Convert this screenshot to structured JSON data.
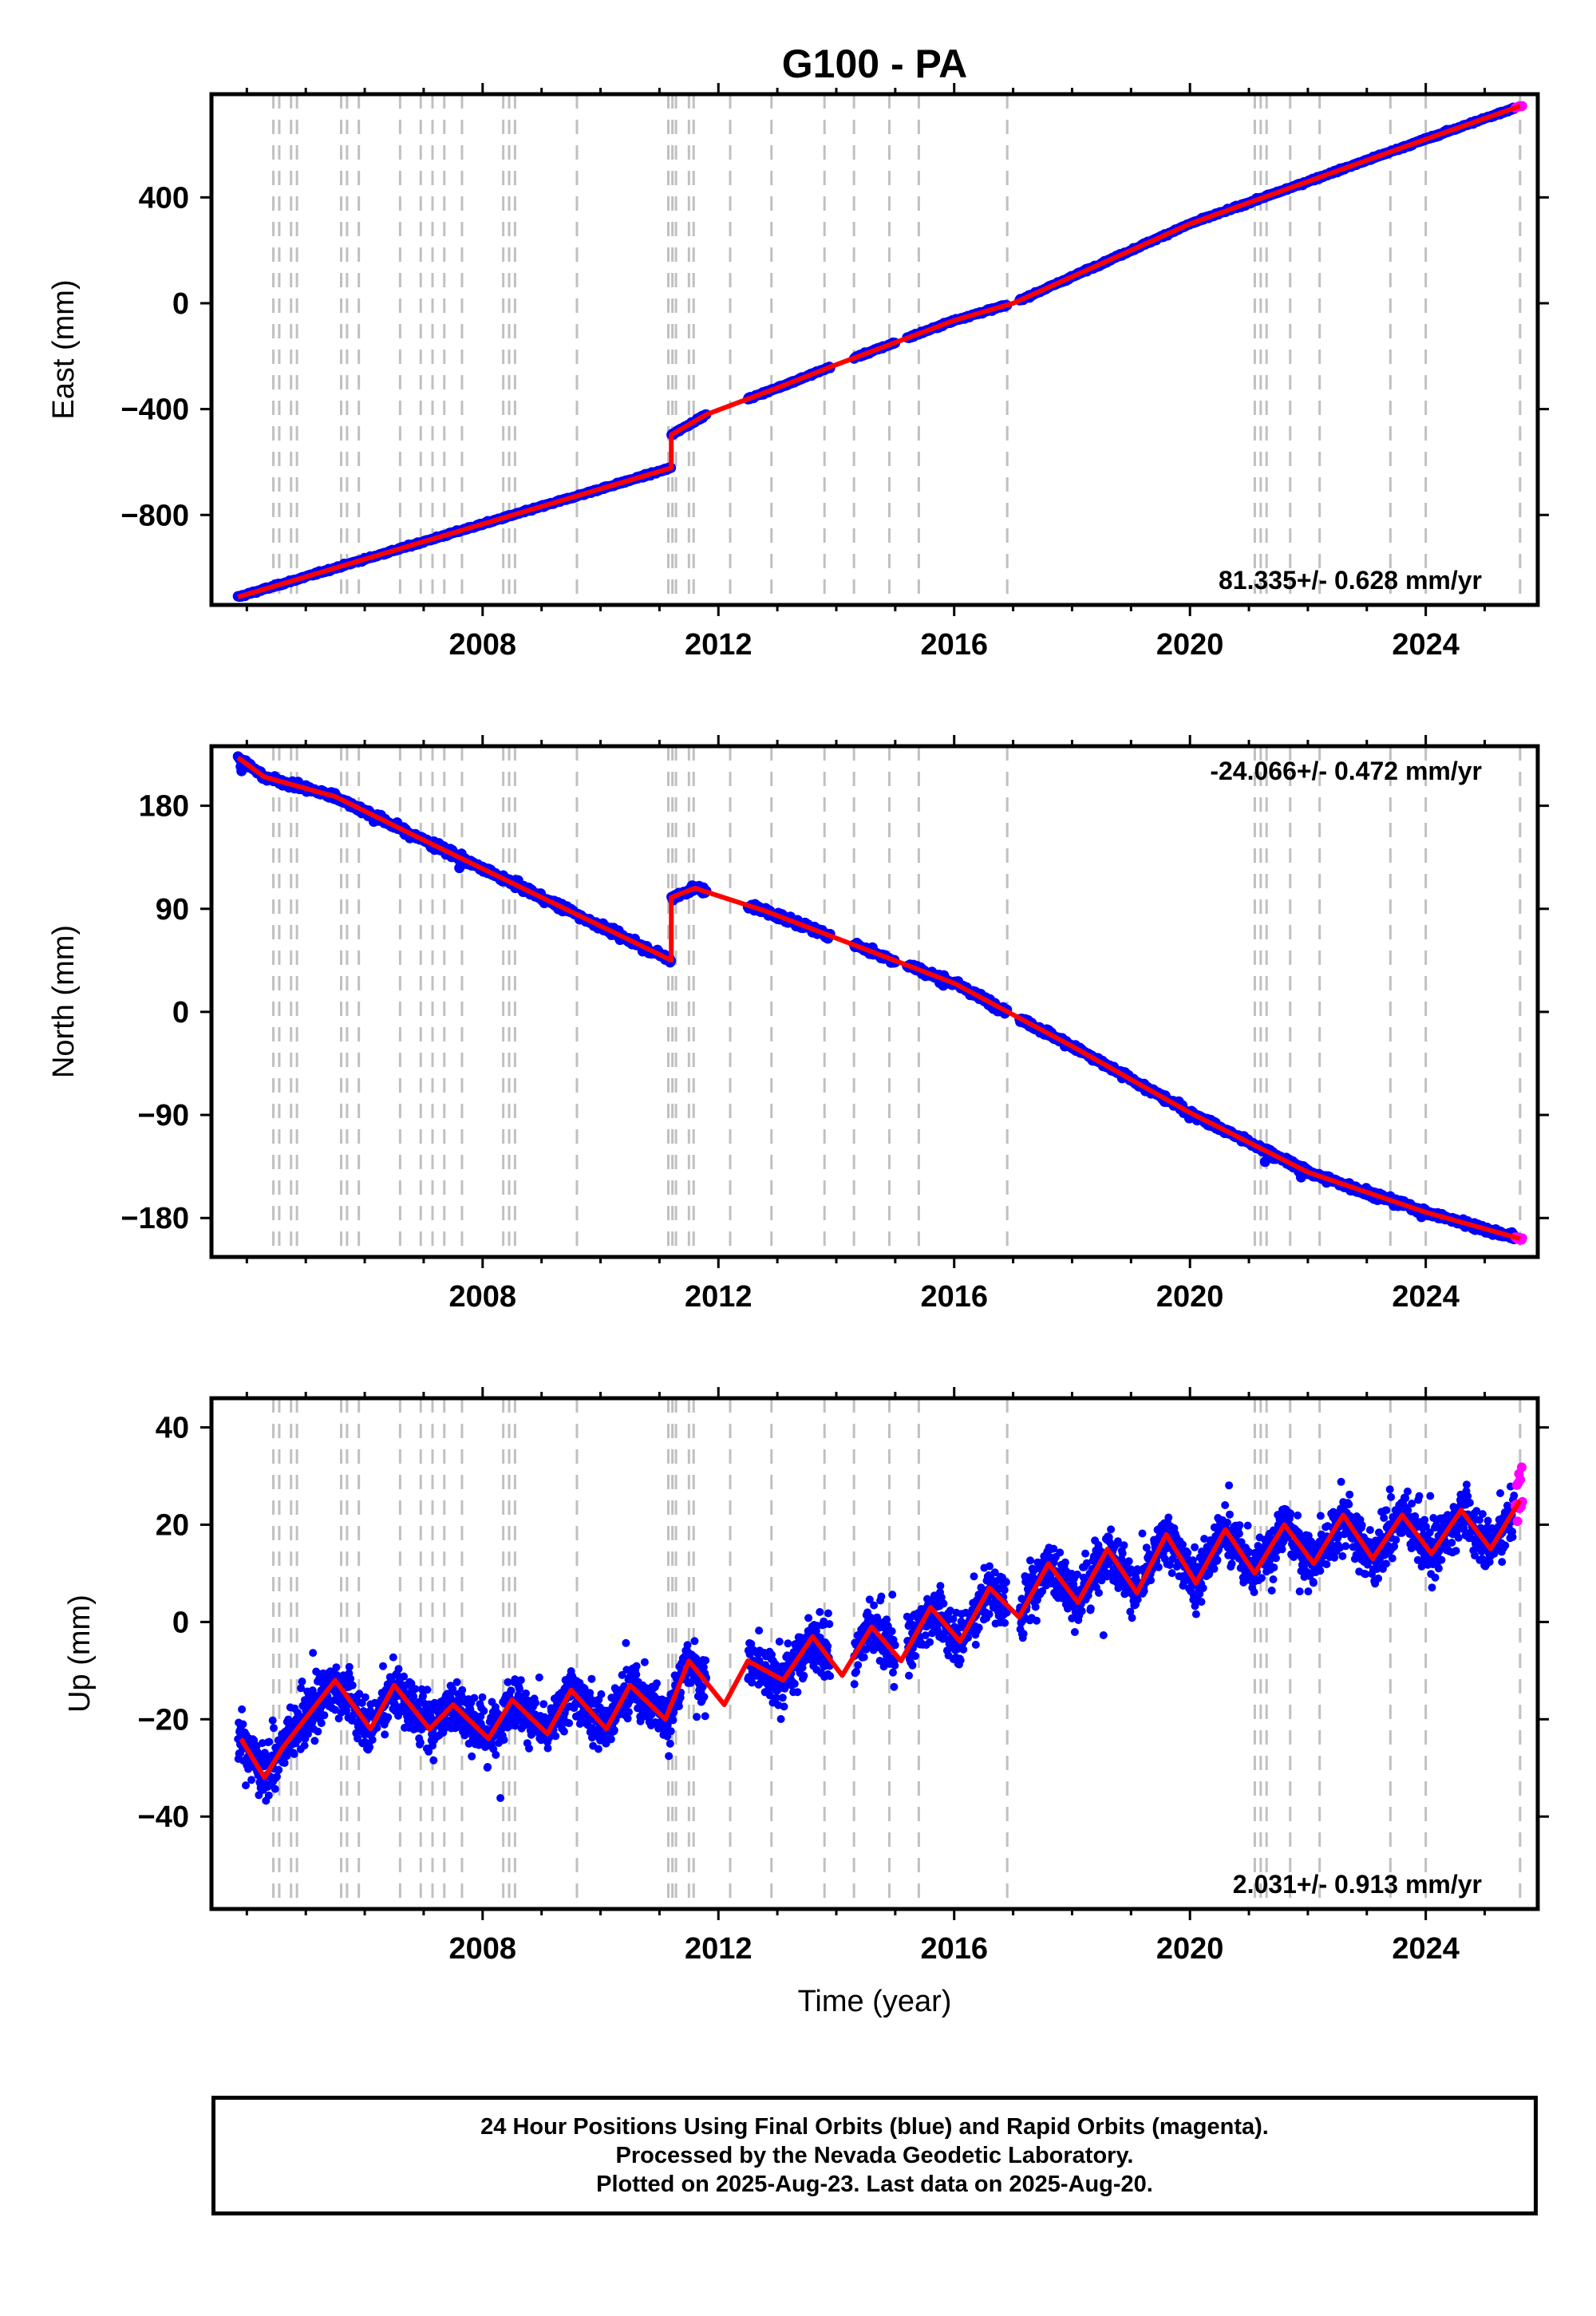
{
  "figure": {
    "title": "G100 - PA",
    "x_axis_label": "Time (year)"
  },
  "colors": {
    "final_orbits": "#0000ff",
    "rapid_orbits": "#ff00ff",
    "model_line": "#ff0000",
    "step_lines": "#c0c0c0"
  },
  "chart_data": [
    {
      "type": "scatter",
      "panel": "east",
      "ylabel": "East (mm)",
      "xlabel": "",
      "xlim": [
        2003.4,
        2025.9
      ],
      "ylim": [
        -1140,
        790
      ],
      "x_ticks": [
        2008,
        2012,
        2016,
        2020,
        2024
      ],
      "y_ticks": [
        -800,
        -400,
        0,
        400
      ],
      "rate_label": "81.335+/- 0.628 mm/yr",
      "grid": false,
      "series": [
        {
          "name": "Final Orbits",
          "color": "blue"
        },
        {
          "name": "Rapid Orbits",
          "color": "magenta"
        },
        {
          "name": "Model",
          "color": "red",
          "points": [
            [
              2003.85,
              -1110
            ],
            [
              2011.2,
              -622
            ],
            [
              2011.2,
              -497
            ],
            [
              2011.8,
              -420
            ],
            [
              2013,
              -320
            ],
            [
              2014,
              -232
            ],
            [
              2016,
              -65
            ],
            [
              2017,
              0
            ],
            [
              2020,
              300
            ],
            [
              2024,
              620
            ],
            [
              2025.6,
              745
            ]
          ]
        }
      ]
    },
    {
      "type": "scatter",
      "panel": "north",
      "ylabel": "North (mm)",
      "xlabel": "",
      "xlim": [
        2003.4,
        2025.9
      ],
      "ylim": [
        -214,
        232
      ],
      "x_ticks": [
        2008,
        2012,
        2016,
        2020,
        2024
      ],
      "y_ticks": [
        -180,
        -90,
        0,
        90,
        180
      ],
      "rate_label": "-24.066+/- 0.472 mm/yr",
      "grid": false,
      "series": [
        {
          "name": "Final Orbits",
          "color": "blue"
        },
        {
          "name": "Rapid Orbits",
          "color": "magenta"
        },
        {
          "name": "Model",
          "color": "red",
          "points": [
            [
              2003.85,
              222
            ],
            [
              2004.3,
              205
            ],
            [
              2005.5,
              188
            ],
            [
              2007,
              150
            ],
            [
              2009,
              100
            ],
            [
              2011.2,
              45
            ],
            [
              2011.2,
              100
            ],
            [
              2011.6,
              108
            ],
            [
              2012.8,
              88
            ],
            [
              2016,
              25
            ],
            [
              2018,
              -30
            ],
            [
              2020,
              -88
            ],
            [
              2022,
              -140
            ],
            [
              2024,
              -175
            ],
            [
              2025.6,
              -198
            ]
          ]
        }
      ]
    },
    {
      "type": "scatter",
      "panel": "up",
      "ylabel": "Up (mm)",
      "xlabel": "Time (year)",
      "xlim": [
        2003.4,
        2025.9
      ],
      "ylim": [
        -59,
        46
      ],
      "x_ticks": [
        2008,
        2012,
        2016,
        2020,
        2024
      ],
      "y_ticks": [
        -40,
        -20,
        0,
        20,
        40
      ],
      "rate_label": "2.031+/- 0.913 mm/yr",
      "grid": false,
      "series": [
        {
          "name": "Final Orbits",
          "color": "blue"
        },
        {
          "name": "Rapid Orbits",
          "color": "magenta"
        },
        {
          "name": "Model",
          "color": "red",
          "points": [
            [
              2003.9,
              -24
            ],
            [
              2004.3,
              -32
            ],
            [
              2004.6,
              -26
            ],
            [
              2005.5,
              -12
            ],
            [
              2006.1,
              -22
            ],
            [
              2006.5,
              -13
            ],
            [
              2007.1,
              -22
            ],
            [
              2007.5,
              -17
            ],
            [
              2008.1,
              -24
            ],
            [
              2008.5,
              -16
            ],
            [
              2009.1,
              -23
            ],
            [
              2009.5,
              -14
            ],
            [
              2010.1,
              -22
            ],
            [
              2010.5,
              -13
            ],
            [
              2011.1,
              -20
            ],
            [
              2011.5,
              -8
            ],
            [
              2012.1,
              -17
            ],
            [
              2012.5,
              -8
            ],
            [
              2013.1,
              -12
            ],
            [
              2013.6,
              -3
            ],
            [
              2014.1,
              -11
            ],
            [
              2014.6,
              -1
            ],
            [
              2015.1,
              -8
            ],
            [
              2015.6,
              3
            ],
            [
              2016.1,
              -4
            ],
            [
              2016.6,
              7
            ],
            [
              2017.1,
              1
            ],
            [
              2017.6,
              12
            ],
            [
              2018.1,
              4
            ],
            [
              2018.6,
              15
            ],
            [
              2019.1,
              6
            ],
            [
              2019.6,
              18
            ],
            [
              2020.1,
              8
            ],
            [
              2020.6,
              19
            ],
            [
              2021.1,
              10
            ],
            [
              2021.6,
              20
            ],
            [
              2022.1,
              12
            ],
            [
              2022.6,
              22
            ],
            [
              2023.1,
              13
            ],
            [
              2023.6,
              22
            ],
            [
              2024.1,
              14
            ],
            [
              2024.6,
              23
            ],
            [
              2025.1,
              15
            ],
            [
              2025.6,
              25
            ]
          ]
        }
      ]
    }
  ],
  "step_epochs": [
    2004.45,
    2004.55,
    2004.75,
    2004.85,
    2005.6,
    2005.7,
    2005.9,
    2006.6,
    2006.95,
    2007.15,
    2007.35,
    2007.65,
    2008.35,
    2008.45,
    2008.55,
    2009.6,
    2011.15,
    2011.22,
    2011.28,
    2011.5,
    2011.58,
    2012.2,
    2012.9,
    2013.8,
    2014.3,
    2014.9,
    2015.4,
    2016.9,
    2021.1,
    2021.2,
    2021.3,
    2021.7,
    2022.2,
    2023.4,
    2024.0,
    2025.6
  ],
  "footer": {
    "line1": "24 Hour Positions Using Final Orbits (blue) and Rapid Orbits (magenta).",
    "line2": "Processed by the Nevada Geodetic Laboratory.",
    "line3": "Plotted on 2025-Aug-23. Last data on 2025-Aug-20."
  }
}
